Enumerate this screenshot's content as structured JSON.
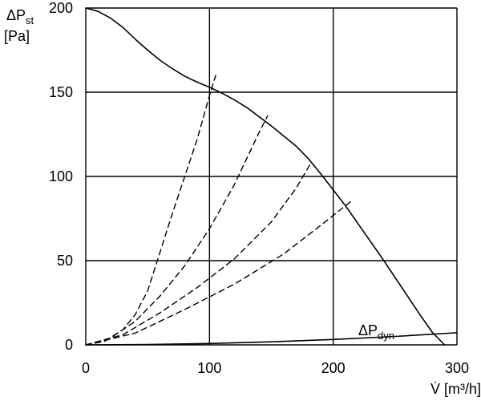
{
  "chart_data": {
    "type": "line",
    "title": "",
    "xlabel": {
      "main": "V̇ [m³/h]"
    },
    "ylabel": {
      "main": "ΔP",
      "sub": "st",
      "unit": "[Pa]"
    },
    "xlim": [
      0,
      300
    ],
    "ylim": [
      0,
      200
    ],
    "x_ticks": [
      0,
      100,
      200,
      300
    ],
    "y_ticks": [
      0,
      50,
      100,
      150,
      200
    ],
    "x_tick_labels": [
      "0",
      "100",
      "200",
      "300"
    ],
    "y_tick_labels": [
      "0",
      "50",
      "100",
      "150",
      "200"
    ],
    "grid": true,
    "legend": "none",
    "annotations": [
      {
        "text_main": "ΔP",
        "text_sub": "dyn",
        "x": 219,
        "y": 6
      }
    ],
    "series": [
      {
        "style": "solid",
        "color": "#000000",
        "x": [
          0,
          10,
          20,
          30,
          40,
          50,
          60,
          70,
          80,
          90,
          100,
          110,
          120,
          130,
          140,
          150,
          160,
          170,
          180,
          190,
          200,
          210,
          220,
          230,
          240,
          250,
          260,
          270,
          280,
          290
        ],
        "y": [
          200,
          198,
          194,
          188.5,
          181.5,
          175,
          169,
          164,
          159.5,
          156,
          153,
          149.5,
          145.5,
          141,
          135.5,
          130,
          124,
          118,
          110.5,
          101.5,
          92,
          82.5,
          72,
          61.5,
          51,
          40,
          29,
          18,
          7.5,
          0
        ]
      },
      {
        "style": "solid",
        "color": "#000000",
        "x": [
          0,
          50,
          100,
          150,
          200,
          250,
          300
        ],
        "y": [
          0,
          0.2,
          0.8,
          1.8,
          3.2,
          5.0,
          7.2
        ]
      },
      {
        "style": "dashed",
        "color": "#000000",
        "x": [
          0,
          15,
          30,
          40,
          50,
          60,
          70,
          80,
          90,
          100,
          105
        ],
        "y": [
          0,
          2,
          9,
          18,
          32,
          55,
          78,
          100,
          122,
          148,
          160
        ]
      },
      {
        "style": "dashed",
        "color": "#000000",
        "x": [
          0,
          20,
          40,
          60,
          80,
          100,
          120,
          140,
          147
        ],
        "y": [
          0,
          4,
          14,
          29,
          47,
          69,
          95,
          126,
          136
        ]
      },
      {
        "style": "dashed",
        "color": "#000000",
        "x": [
          0,
          30,
          60,
          90,
          120,
          150,
          170,
          182
        ],
        "y": [
          0,
          6,
          19,
          34,
          51,
          73,
          93,
          108
        ]
      },
      {
        "style": "dashed",
        "color": "#000000",
        "x": [
          0,
          40,
          80,
          120,
          160,
          190,
          214
        ],
        "y": [
          0,
          7,
          21,
          36,
          54,
          71,
          85
        ]
      }
    ]
  }
}
